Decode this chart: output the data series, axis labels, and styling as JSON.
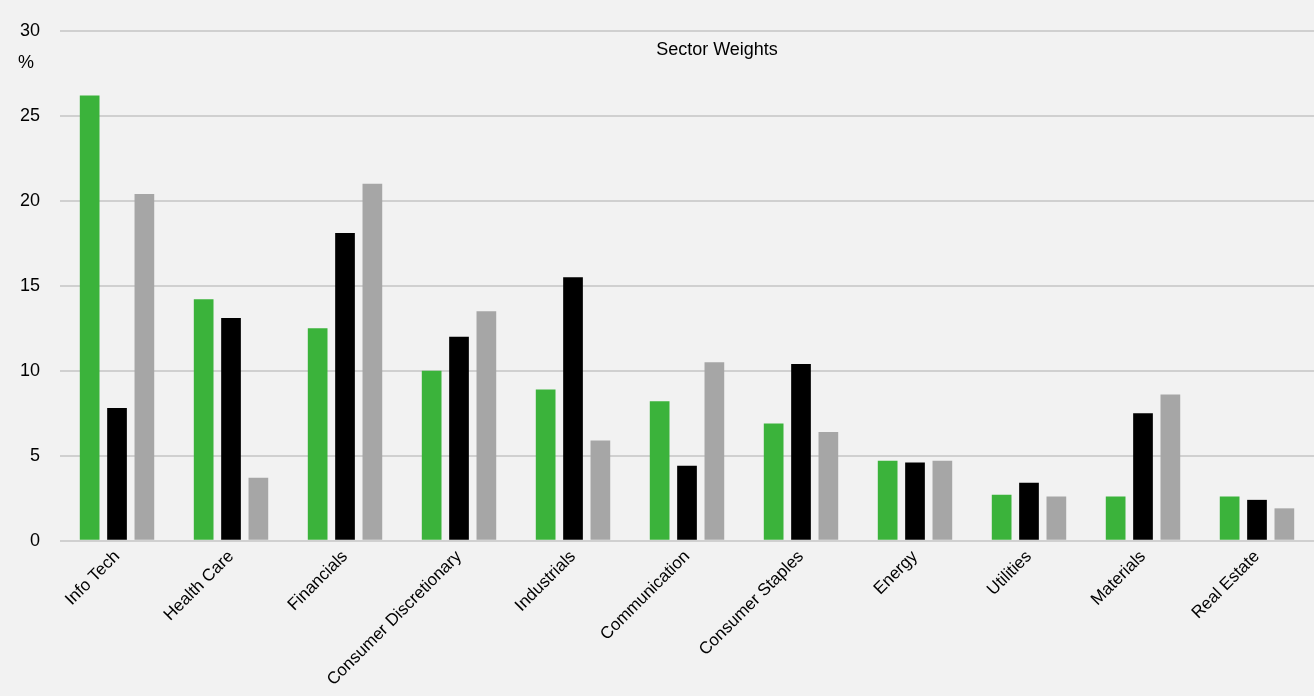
{
  "chart_data": {
    "type": "bar",
    "title": "Sector Weights",
    "ylabel": "%",
    "categories": [
      "Info Tech",
      "Health Care",
      "Financials",
      "Consumer Discretionary",
      "Industrials",
      "Communication",
      "Consumer Staples",
      "Energy",
      "Utilities",
      "Materials",
      "Real Estate"
    ],
    "series": [
      {
        "color": "#3bb33b",
        "values": [
          26.2,
          14.2,
          12.5,
          10.0,
          8.9,
          8.2,
          6.9,
          4.7,
          2.7,
          2.6,
          2.6
        ]
      },
      {
        "color": "#000000",
        "values": [
          7.8,
          13.1,
          18.1,
          12.0,
          15.5,
          4.4,
          10.4,
          4.6,
          3.4,
          7.5,
          2.4
        ]
      },
      {
        "color": "#a6a6a6",
        "values": [
          20.4,
          3.7,
          21.0,
          13.5,
          5.9,
          10.5,
          6.4,
          4.7,
          2.6,
          8.6,
          1.9
        ]
      }
    ],
    "ylim": [
      0,
      30
    ],
    "yticks": [
      0,
      5,
      10,
      15,
      20,
      25,
      30
    ],
    "grid": "y"
  }
}
